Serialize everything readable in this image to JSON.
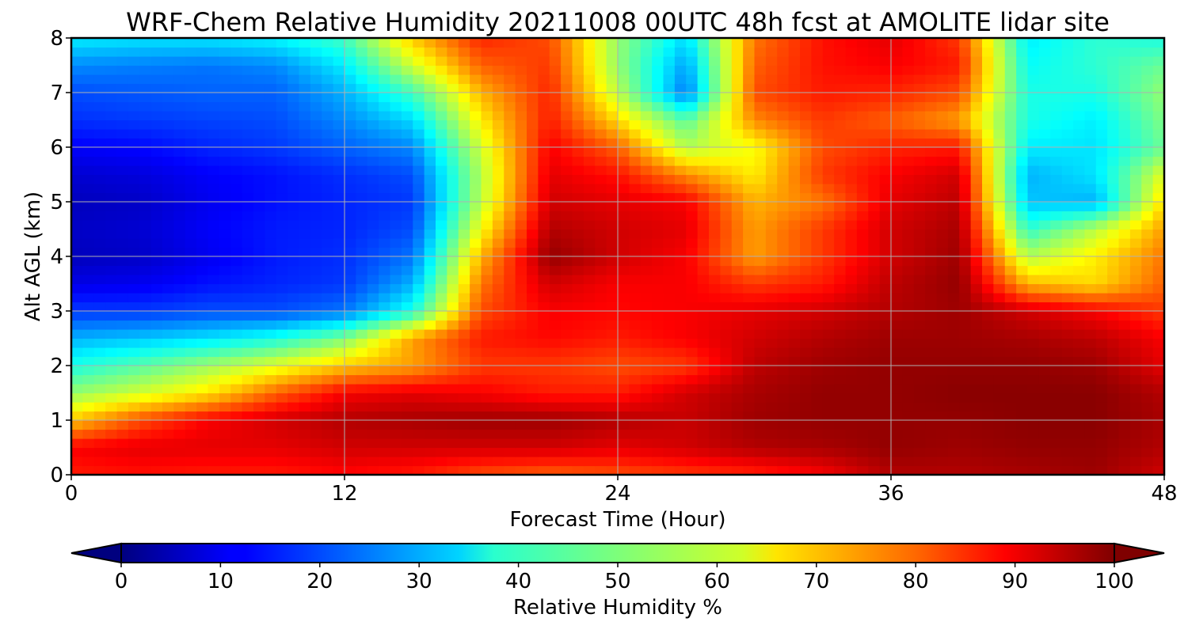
{
  "chart_data": {
    "type": "heatmap",
    "title": "WRF-Chem Relative Humidity 20211008 00UTC 48h fcst at AMOLITE lidar site",
    "xlabel": "Forecast Time (Hour)",
    "ylabel": "Alt AGL (km)",
    "xlim": [
      0,
      48
    ],
    "ylim": [
      0,
      8
    ],
    "xticks": [
      0,
      12,
      24,
      36,
      48
    ],
    "yticks": [
      0,
      1,
      2,
      3,
      4,
      5,
      6,
      7,
      8
    ],
    "grid": true,
    "colormap": "jet",
    "colorbar": {
      "label": "Relative Humidity %",
      "range": [
        0,
        100
      ],
      "ticks": [
        0,
        10,
        20,
        30,
        40,
        50,
        60,
        70,
        80,
        90,
        100
      ],
      "extend": "both",
      "orientation": "horizontal"
    },
    "x": [
      0,
      3,
      6,
      9,
      12,
      15,
      18,
      21,
      24,
      27,
      30,
      33,
      36,
      39,
      42,
      45,
      48
    ],
    "y": [
      0,
      0.5,
      1,
      1.5,
      2,
      2.5,
      3,
      3.5,
      4,
      4.5,
      5,
      5.5,
      6,
      6.5,
      7,
      7.5,
      8
    ],
    "z": [
      [
        85,
        86,
        85,
        85,
        87,
        85,
        80,
        78,
        80,
        82,
        84,
        88,
        95,
        95,
        96,
        97,
        92
      ],
      [
        88,
        90,
        90,
        90,
        92,
        92,
        92,
        92,
        90,
        92,
        95,
        96,
        98,
        97,
        98,
        98,
        95
      ],
      [
        68,
        80,
        88,
        92,
        95,
        96,
        97,
        97,
        95,
        93,
        97,
        98,
        98,
        98,
        99,
        99,
        96
      ],
      [
        52,
        58,
        65,
        78,
        88,
        90,
        88,
        85,
        85,
        92,
        96,
        98,
        98,
        99,
        99,
        99,
        95
      ],
      [
        40,
        46,
        53,
        60,
        68,
        72,
        82,
        82,
        80,
        82,
        94,
        97,
        98,
        98,
        98,
        97,
        90
      ],
      [
        30,
        32,
        35,
        40,
        50,
        72,
        85,
        87,
        85,
        88,
        92,
        95,
        97,
        97,
        96,
        94,
        88
      ],
      [
        18,
        18,
        20,
        20,
        24,
        40,
        80,
        88,
        87,
        88,
        90,
        92,
        95,
        97,
        92,
        88,
        82
      ],
      [
        10,
        11,
        14,
        16,
        18,
        30,
        76,
        92,
        88,
        88,
        82,
        85,
        94,
        98,
        70,
        66,
        78
      ],
      [
        6,
        7,
        11,
        15,
        17,
        24,
        70,
        98,
        92,
        88,
        72,
        82,
        92,
        97,
        55,
        64,
        76
      ],
      [
        7,
        8,
        12,
        15,
        16,
        20,
        62,
        95,
        92,
        90,
        72,
        82,
        92,
        96,
        42,
        56,
        72
      ],
      [
        6,
        7,
        11,
        14,
        16,
        18,
        56,
        92,
        90,
        88,
        70,
        76,
        90,
        94,
        32,
        30,
        66
      ],
      [
        8,
        9,
        12,
        14,
        17,
        20,
        55,
        90,
        86,
        74,
        64,
        82,
        88,
        92,
        30,
        35,
        60
      ],
      [
        12,
        13,
        16,
        18,
        22,
        26,
        58,
        88,
        78,
        55,
        62,
        80,
        84,
        85,
        36,
        35,
        48
      ],
      [
        17,
        18,
        19,
        20,
        26,
        34,
        64,
        85,
        66,
        46,
        74,
        82,
        78,
        72,
        40,
        36,
        50
      ],
      [
        20,
        21,
        22,
        22,
        30,
        44,
        70,
        84,
        56,
        24,
        80,
        85,
        84,
        80,
        40,
        40,
        52
      ],
      [
        26,
        25,
        24,
        26,
        36,
        58,
        78,
        82,
        52,
        28,
        78,
        86,
        88,
        85,
        38,
        42,
        48
      ],
      [
        36,
        35,
        35,
        37,
        44,
        68,
        84,
        80,
        52,
        34,
        76,
        86,
        90,
        82,
        36,
        42,
        40
      ]
    ]
  }
}
